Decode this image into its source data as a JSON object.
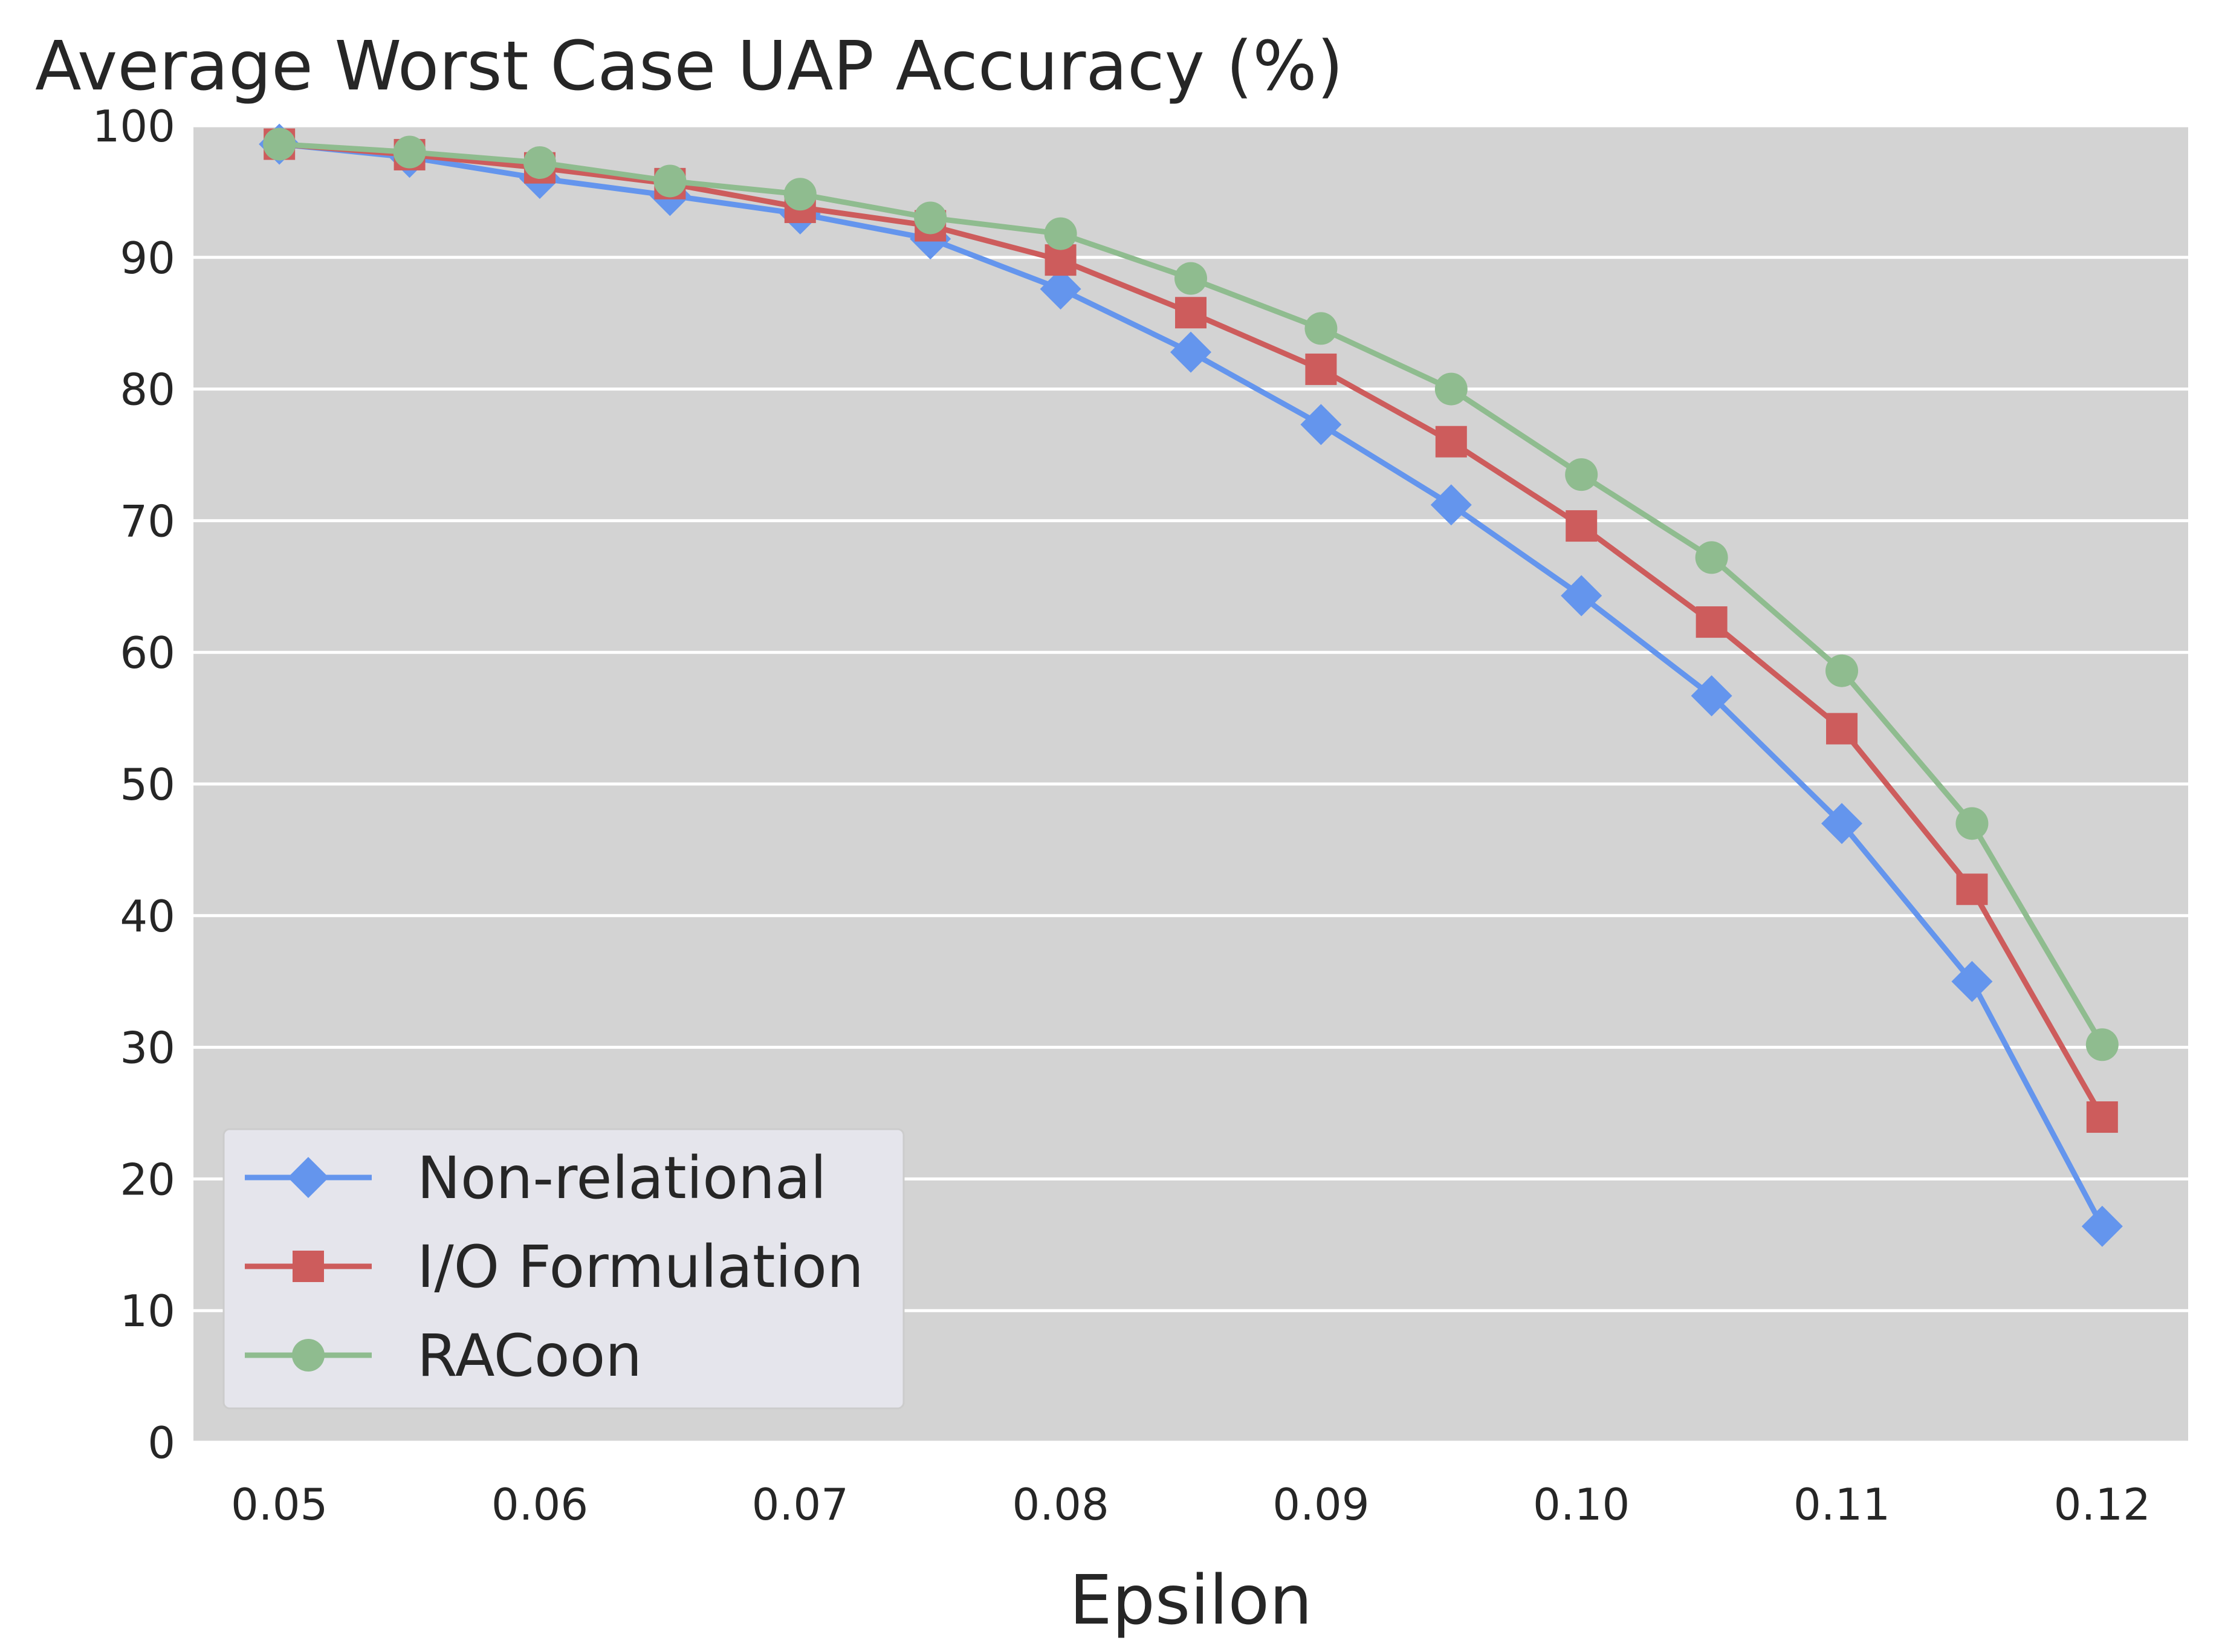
{
  "chart_data": {
    "type": "line",
    "title": "Average Worst Case UAP Accuracy (%)",
    "xlabel": "Epsilon",
    "ylabel": "",
    "x": [
      0.05,
      0.055,
      0.06,
      0.065,
      0.07,
      0.075,
      0.08,
      0.085,
      0.09,
      0.095,
      0.1,
      0.105,
      0.11,
      0.115,
      0.12
    ],
    "xticks": [
      0.05,
      0.06,
      0.07,
      0.08,
      0.09,
      0.1,
      0.11,
      0.12
    ],
    "xtick_labels": [
      "0.05",
      "0.06",
      "0.07",
      "0.08",
      "0.09",
      "0.10",
      "0.11",
      "0.12"
    ],
    "yticks": [
      0,
      10,
      20,
      30,
      40,
      50,
      60,
      70,
      80,
      90,
      100
    ],
    "ytick_labels": [
      "0",
      "10",
      "20",
      "30",
      "40",
      "50",
      "60",
      "70",
      "80",
      "90",
      "100"
    ],
    "xlim": [
      0.0467,
      0.1233
    ],
    "ylim": [
      0,
      100
    ],
    "grid": true,
    "legend_position": "lower-left",
    "series": [
      {
        "name": "Non-relational",
        "color": "#6495ED",
        "marker": "diamond",
        "values": [
          98.6,
          97.6,
          96.0,
          94.7,
          93.3,
          91.4,
          87.6,
          82.8,
          77.3,
          71.2,
          64.3,
          56.7,
          47.0,
          35.0,
          16.4
        ]
      },
      {
        "name": "I/O Formulation",
        "color": "#CD5C5C",
        "marker": "square",
        "values": [
          98.6,
          97.8,
          96.8,
          95.6,
          93.8,
          92.4,
          89.8,
          85.8,
          81.5,
          76.0,
          69.6,
          62.3,
          54.2,
          42.0,
          24.7
        ]
      },
      {
        "name": "RACoon",
        "color": "#8FBC8F",
        "marker": "circle",
        "values": [
          98.6,
          98.0,
          97.2,
          95.8,
          94.8,
          93.0,
          91.8,
          88.4,
          84.6,
          80.0,
          73.5,
          67.2,
          58.6,
          47.0,
          30.2
        ]
      }
    ]
  }
}
